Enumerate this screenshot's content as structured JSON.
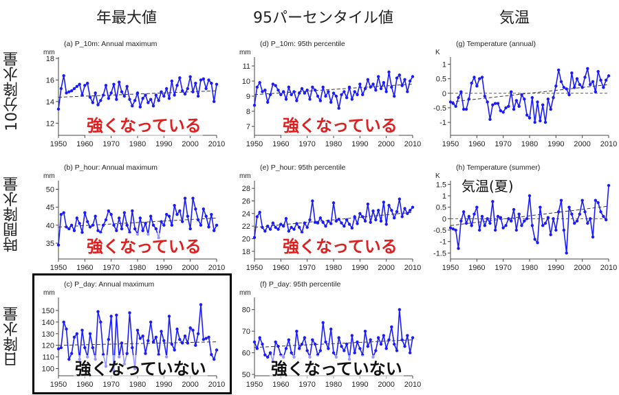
{
  "headers": {
    "col1": "年最大値",
    "col2": "95パーセンタイル値",
    "col3": "気温",
    "row1": "10分降水量",
    "row2": "時間降水量",
    "row3": "日降水量"
  },
  "overlays": {
    "a": "強くなっている",
    "b": "強くなっている",
    "d": "強くなっている",
    "e": "強くなっている",
    "c": "強くなっていない",
    "f": "強くなっていない",
    "h": "気温(夏)"
  },
  "colors": {
    "series": "#1a1aff",
    "trend": "#333333",
    "positive": "#e02020"
  },
  "chart_data": [
    {
      "id": "a",
      "type": "line",
      "title": "(a) P_10m: Annual maximum",
      "unit": "mm",
      "x_start": 1950,
      "x_end": 2010,
      "xticks": [
        1950,
        1960,
        1970,
        1980,
        1990,
        2000,
        2010
      ],
      "ylim": [
        11,
        18
      ],
      "yticks": [
        12,
        14,
        16,
        18
      ],
      "trend": [
        14.4,
        15.0
      ],
      "zero_line": false,
      "values": [
        13.3,
        15.2,
        16.4,
        14.8,
        14.9,
        15.0,
        15.2,
        15.4,
        15.6,
        14.6,
        15.5,
        15.7,
        14.4,
        13.9,
        14.8,
        13.7,
        14.1,
        14.6,
        15.5,
        14.3,
        14.8,
        15.6,
        14.2,
        15.8,
        14.9,
        14.5,
        15.4,
        14.2,
        13.6,
        14.1,
        14.8,
        13.5,
        14.3,
        14.6,
        13.9,
        14.2,
        13.6,
        14.6,
        14.1,
        14.9,
        14.5,
        15.2,
        14.3,
        15.9,
        14.6,
        15.5,
        16.2,
        15.0,
        14.7,
        15.2,
        16.3,
        14.9,
        15.7,
        14.5,
        16.0,
        16.1,
        15.2,
        16.0,
        15.7,
        14.0,
        15.6
      ]
    },
    {
      "id": "b",
      "type": "line",
      "title": "(b) P_hour: Annual maximum",
      "unit": "mm",
      "x_start": 1950,
      "x_end": 2010,
      "xticks": [
        1950,
        1960,
        1970,
        1980,
        1990,
        2000,
        2010
      ],
      "ylim": [
        31,
        52
      ],
      "yticks": [
        35,
        40,
        45,
        50
      ],
      "trend": [
        39.5,
        42.0
      ],
      "zero_line": false,
      "values": [
        34.5,
        43.0,
        43.5,
        39.5,
        39.0,
        40.0,
        38.5,
        42.0,
        40.5,
        38.0,
        43.5,
        41.0,
        39.5,
        40.0,
        42.5,
        38.5,
        38.0,
        40.0,
        41.5,
        44.0,
        43.0,
        40.0,
        38.5,
        42.0,
        39.0,
        43.5,
        40.0,
        38.0,
        44.0,
        39.0,
        37.5,
        42.0,
        38.5,
        40.5,
        37.5,
        42.5,
        40.0,
        39.0,
        36.5,
        41.0,
        40.0,
        43.0,
        42.5,
        40.0,
        45.5,
        43.0,
        44.0,
        41.0,
        47.5,
        42.5,
        39.0,
        47.5,
        44.5,
        41.5,
        40.0,
        44.5,
        42.5,
        39.5,
        43.0,
        38.5,
        40.0
      ]
    },
    {
      "id": "c",
      "type": "line",
      "title": "(c) P_day: Annual maximum",
      "unit": "mm",
      "x_start": 1950,
      "x_end": 2010,
      "xticks": [
        1950,
        1960,
        1970,
        1980,
        1990,
        2000,
        2010
      ],
      "ylim": [
        95,
        160
      ],
      "yticks": [
        100,
        110,
        120,
        130,
        140,
        150
      ],
      "trend": [
        120.0,
        123.0
      ],
      "zero_line": false,
      "values": [
        117,
        118,
        140,
        134,
        108,
        113,
        127,
        130,
        108,
        133,
        118,
        110,
        130,
        118,
        108,
        149,
        140,
        112,
        102,
        125,
        145,
        98,
        146,
        110,
        122,
        104,
        113,
        148,
        118,
        100,
        133,
        126,
        128,
        113,
        124,
        140,
        123,
        127,
        112,
        132,
        124,
        110,
        145,
        121,
        116,
        134,
        125,
        122,
        128,
        122,
        135,
        133,
        120,
        130,
        155,
        125,
        126,
        127,
        112,
        108,
        116
      ]
    },
    {
      "id": "d",
      "type": "line",
      "title": "(d) P_10m: 95th percentile",
      "unit": "mm",
      "x_start": 1950,
      "x_end": 2010,
      "xticks": [
        1950,
        1960,
        1970,
        1980,
        1990,
        2000,
        2010
      ],
      "ylim": [
        6.5,
        11.5
      ],
      "yticks": [
        7,
        8,
        9,
        10,
        11
      ],
      "trend": [
        9.1,
        9.8
      ],
      "zero_line": false,
      "values": [
        8.4,
        9.6,
        9.9,
        9.3,
        9.4,
        8.6,
        9.1,
        9.8,
        9.7,
        9.4,
        9.1,
        9.3,
        8.8,
        9.6,
        9.1,
        9.3,
        8.7,
        9.2,
        9.5,
        9.2,
        9.4,
        8.8,
        9.6,
        9.4,
        9.0,
        8.7,
        9.6,
        9.0,
        9.3,
        8.6,
        9.2,
        9.0,
        8.2,
        9.1,
        9.3,
        8.9,
        9.6,
        8.8,
        9.3,
        9.1,
        9.8,
        9.1,
        9.5,
        10.1,
        9.6,
        9.8,
        9.4,
        10.3,
        9.5,
        9.9,
        9.3,
        10.6,
        9.6,
        9.0,
        10.2,
        10.4,
        9.7,
        10.1,
        9.3,
        10.0,
        10.3
      ]
    },
    {
      "id": "e",
      "type": "line",
      "title": "(e) P_hour: 95th percentile",
      "unit": "mm",
      "x_start": 1950,
      "x_end": 2010,
      "xticks": [
        1950,
        1960,
        1970,
        1980,
        1990,
        2000,
        2010
      ],
      "ylim": [
        17,
        29
      ],
      "yticks": [
        18,
        20,
        22,
        24,
        26,
        28
      ],
      "trend": [
        21.8,
        24.2
      ],
      "zero_line": false,
      "values": [
        20.2,
        23.5,
        24.2,
        21.8,
        21.2,
        22.0,
        21.5,
        22.5,
        21.8,
        21.5,
        22.3,
        22.0,
        23.2,
        21.2,
        21.8,
        21.5,
        22.4,
        21.8,
        21.0,
        22.5,
        21.8,
        23.0,
        26.0,
        22.6,
        22.5,
        23.3,
        22.6,
        22.0,
        22.8,
        22.4,
        25.7,
        22.8,
        23.1,
        22.5,
        22.0,
        23.0,
        22.3,
        21.7,
        23.5,
        22.4,
        24.0,
        23.5,
        22.8,
        25.5,
        22.6,
        24.4,
        23.0,
        24.5,
        22.8,
        25.8,
        22.3,
        25.3,
        24.5,
        23.3,
        24.3,
        26.3,
        23.5,
        24.8,
        24.0,
        24.5,
        25.0
      ]
    },
    {
      "id": "f",
      "type": "line",
      "title": "(f) P_day: 95th percentile",
      "unit": "mm",
      "x_start": 1950,
      "x_end": 2010,
      "xticks": [
        1950,
        1960,
        1970,
        1980,
        1990,
        2000,
        2010
      ],
      "ylim": [
        50,
        85
      ],
      "yticks": [
        50,
        60,
        70,
        80
      ],
      "trend": [
        62.5,
        66.0
      ],
      "zero_line": false,
      "values": [
        65,
        62,
        67,
        64,
        59,
        58,
        60,
        56,
        65,
        63,
        59,
        58,
        62,
        66,
        60,
        58,
        70,
        62,
        64,
        67,
        61,
        58,
        66,
        64,
        59,
        61,
        74,
        65,
        62,
        71,
        60,
        58,
        67,
        63,
        61,
        64,
        57,
        68,
        60,
        65,
        62,
        59,
        70,
        63,
        66,
        58,
        61,
        67,
        64,
        68,
        62,
        66,
        72,
        64,
        61,
        80,
        66,
        63,
        68,
        60,
        67
      ]
    },
    {
      "id": "g",
      "type": "line",
      "title": "(g) Temperature (annual)",
      "unit": "K",
      "x_start": 1950,
      "x_end": 2010,
      "xticks": [
        1950,
        1960,
        1970,
        1980,
        1990,
        2000,
        2010
      ],
      "ylim": [
        -1.4,
        1.2
      ],
      "yticks": [
        -1.0,
        -0.5,
        0.0,
        0.5,
        1.0
      ],
      "trend": [
        -0.3,
        0.3
      ],
      "zero_line": true,
      "values": [
        -0.3,
        -0.35,
        -0.45,
        -0.15,
        0.05,
        -0.55,
        -0.55,
        -0.2,
        0.35,
        0.55,
        0.25,
        0.5,
        0.55,
        -0.1,
        -0.3,
        -0.9,
        -0.4,
        -0.35,
        -0.35,
        -0.6,
        -0.65,
        -0.5,
        -0.45,
        0.05,
        -0.55,
        -0.25,
        -0.45,
        -0.05,
        -0.2,
        -0.75,
        -0.85,
        -0.15,
        -1.0,
        -0.3,
        -0.95,
        -0.4,
        -1.0,
        -0.2,
        -0.55,
        -0.15,
        0.25,
        0.8,
        0.4,
        0.2,
        0.15,
        -0.05,
        0.7,
        0.2,
        0.5,
        0.3,
        0.2,
        0.55,
        0.85,
        0.3,
        0.4,
        0.05,
        0.75,
        0.45,
        0.2,
        0.45,
        0.6
      ]
    },
    {
      "id": "h",
      "type": "line",
      "title": "(h) Temperature (summer)",
      "unit": "K",
      "x_start": 1950,
      "x_end": 2010,
      "xticks": [
        1950,
        1960,
        1970,
        1980,
        1990,
        2000,
        2010
      ],
      "ylim": [
        -1.7,
        1.6
      ],
      "yticks": [
        -1.5,
        -1.0,
        -0.5,
        0.0,
        0.5,
        1.0,
        1.5
      ],
      "trend": [
        -0.3,
        0.55
      ],
      "zero_line": true,
      "values": [
        -0.4,
        -0.45,
        -0.5,
        -1.3,
        -0.1,
        0.3,
        -0.2,
        0.1,
        -0.3,
        0.2,
        0.5,
        -0.5,
        0.1,
        -0.3,
        0.0,
        -0.2,
        0.75,
        -0.5,
        0.1,
        0.05,
        -0.4,
        -0.3,
        0.0,
        -0.1,
        0.4,
        -0.5,
        0.2,
        -0.3,
        -0.1,
        0.0,
        1.0,
        -0.3,
        -0.9,
        -1.05,
        0.5,
        -0.3,
        -0.2,
        0.05,
        -0.7,
        0.0,
        -0.5,
        0.3,
        0.8,
        -0.5,
        -1.5,
        0.5,
        0.2,
        -0.2,
        -0.1,
        0.2,
        0.8,
        0.3,
        -0.2,
        0.0,
        -0.8,
        0.8,
        0.7,
        0.3,
        0.1,
        -0.05,
        1.45
      ]
    }
  ]
}
